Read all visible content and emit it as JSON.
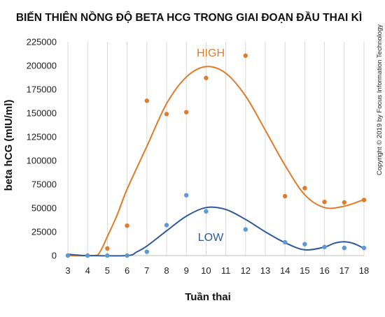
{
  "chart_data": {
    "type": "scatter",
    "title": "BIẾN THIÊN NỒNG ĐỘ BETA HCG TRONG GIAI ĐOẠN ĐẦU THAI KÌ",
    "xlabel": "Tuần thai",
    "ylabel": "beta hCG (mIU/ml)",
    "copyright": "Copyright © 2019 by Focus Information Technology",
    "xlim": [
      3,
      18
    ],
    "ylim": [
      0,
      225000
    ],
    "x_ticks": [
      "3",
      "4",
      "5",
      "6",
      "7",
      "8",
      "9",
      "10",
      "11",
      "12",
      "13",
      "14",
      "15",
      "16",
      "17",
      "18"
    ],
    "y_ticks": [
      "0",
      "25000",
      "50000",
      "75000",
      "100000",
      "125000",
      "150000",
      "175000",
      "200000",
      "225000"
    ],
    "grid": "vertical",
    "series": [
      {
        "name": "HIGH",
        "color": "#E07B2A",
        "points": [
          [
            3,
            0
          ],
          [
            4,
            0
          ],
          [
            5,
            7500
          ],
          [
            6,
            31500
          ],
          [
            7,
            163000
          ],
          [
            8,
            149000
          ],
          [
            9,
            151000
          ],
          [
            10,
            187000
          ],
          [
            12,
            210500
          ],
          [
            14,
            62500
          ],
          [
            15,
            71000
          ],
          [
            16,
            56500
          ],
          [
            17,
            56000
          ],
          [
            18,
            58500
          ]
        ],
        "trend": [
          [
            3,
            0
          ],
          [
            4.3,
            0
          ],
          [
            4.6,
            3000
          ],
          [
            5,
            20000
          ],
          [
            5.5,
            43000
          ],
          [
            6,
            70000
          ],
          [
            7,
            115000
          ],
          [
            8,
            160000
          ],
          [
            9,
            188000
          ],
          [
            10,
            199000
          ],
          [
            11,
            192000
          ],
          [
            12,
            168000
          ],
          [
            13,
            132000
          ],
          [
            14,
            95000
          ],
          [
            15,
            64000
          ],
          [
            16,
            50500
          ],
          [
            17,
            52000
          ],
          [
            18,
            59000
          ]
        ]
      },
      {
        "name": "LOW",
        "color": "#2F5A9A",
        "point_color": "#5B9BD5",
        "points": [
          [
            3,
            0
          ],
          [
            4,
            0
          ],
          [
            5,
            0
          ],
          [
            6,
            0
          ],
          [
            7,
            4000
          ],
          [
            8,
            32000
          ],
          [
            9,
            63500
          ],
          [
            10,
            46500
          ],
          [
            12,
            27500
          ],
          [
            14,
            14000
          ],
          [
            15,
            12000
          ],
          [
            16,
            9000
          ],
          [
            17,
            8000
          ],
          [
            18,
            8000
          ]
        ],
        "trend": [
          [
            3,
            1500
          ],
          [
            3.5,
            500
          ],
          [
            4,
            0
          ],
          [
            6,
            0
          ],
          [
            6.5,
            4000
          ],
          [
            7,
            10000
          ],
          [
            8,
            26000
          ],
          [
            9,
            41500
          ],
          [
            10,
            50500
          ],
          [
            11,
            48500
          ],
          [
            12,
            38000
          ],
          [
            13,
            25000
          ],
          [
            14,
            13500
          ],
          [
            15,
            6000
          ],
          [
            16,
            9000
          ],
          [
            16.5,
            13000
          ],
          [
            17,
            14500
          ],
          [
            17.5,
            12500
          ],
          [
            18,
            7500
          ]
        ]
      }
    ]
  }
}
